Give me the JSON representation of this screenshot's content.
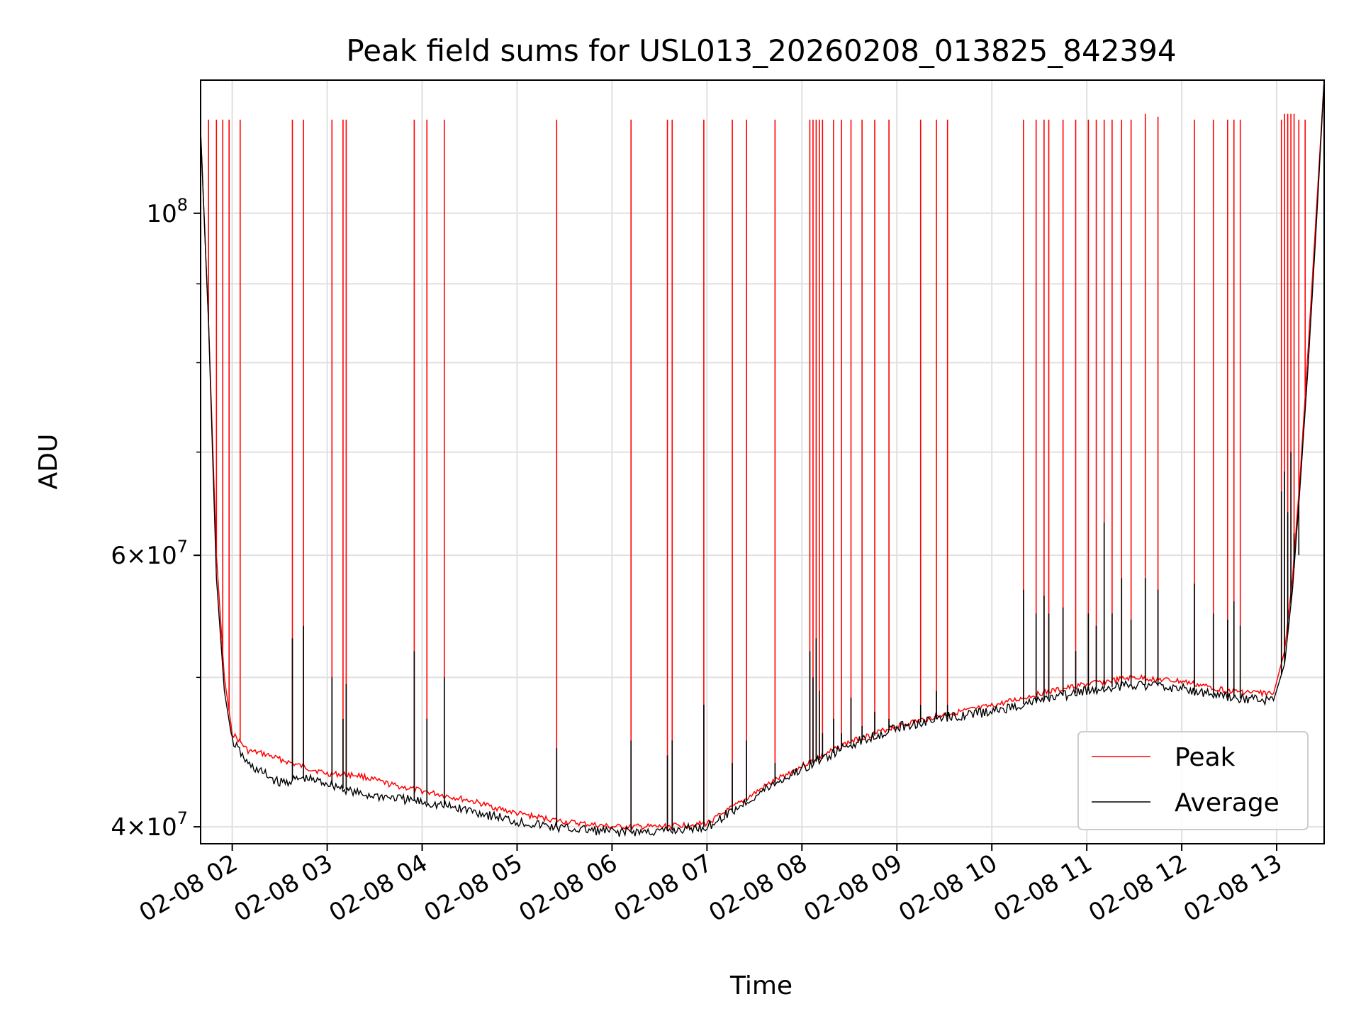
{
  "title": "Peak field sums for USL013_20260208_013825_842394",
  "colors": {
    "background": "#ffffff",
    "grid": "#e0e0e0",
    "axes": "#000000",
    "peak": "#ff0000",
    "average": "#000000"
  },
  "chart_data": {
    "type": "line",
    "title": "Peak field sums for USL013_20260208_013825_842394",
    "xlabel": "Time",
    "ylabel": "ADU",
    "y_scale": "log",
    "grid": true,
    "legend_position": "lower-right",
    "xlim": [
      "02-08 01:40",
      "02-08 13:30"
    ],
    "ylim": [
      39000000,
      122000000
    ],
    "x_ticks": [
      "02-08 02",
      "02-08 03",
      "02-08 04",
      "02-08 05",
      "02-08 06",
      "02-08 07",
      "02-08 08",
      "02-08 09",
      "02-08 10",
      "02-08 11",
      "02-08 12",
      "02-08 13"
    ],
    "y_ticks": [
      {
        "value": 100000000,
        "label": "10^8"
      },
      {
        "value": 60000000,
        "label": "6×10^7"
      },
      {
        "value": 40000000,
        "label": "4×10^7"
      }
    ],
    "series": [
      {
        "name": "Peak",
        "color": "#ff0000",
        "baseline": [
          [
            "02-08 01:40",
            113000000
          ],
          [
            "02-08 01:45",
            85000000
          ],
          [
            "02-08 01:50",
            60000000
          ],
          [
            "02-08 01:55",
            50000000
          ],
          [
            "02-08 02:00",
            46000000
          ],
          [
            "02-08 02:10",
            44800000
          ],
          [
            "02-08 02:20",
            44600000
          ],
          [
            "02-08 02:40",
            43900000
          ],
          [
            "02-08 03:00",
            43300000
          ],
          [
            "02-08 03:20",
            43200000
          ],
          [
            "02-08 03:40",
            42600000
          ],
          [
            "02-08 04:00",
            42200000
          ],
          [
            "02-08 04:30",
            41600000
          ],
          [
            "02-08 05:00",
            40800000
          ],
          [
            "02-08 05:30",
            40300000
          ],
          [
            "02-08 06:00",
            40000000
          ],
          [
            "02-08 06:30",
            40000000
          ],
          [
            "02-08 07:00",
            40200000
          ],
          [
            "02-08 07:20",
            41400000
          ],
          [
            "02-08 07:40",
            42700000
          ],
          [
            "02-08 08:00",
            43800000
          ],
          [
            "02-08 08:30",
            45400000
          ],
          [
            "02-08 09:00",
            46500000
          ],
          [
            "02-08 09:30",
            47300000
          ],
          [
            "02-08 10:00",
            47900000
          ],
          [
            "02-08 10:30",
            48800000
          ],
          [
            "02-08 11:00",
            49500000
          ],
          [
            "02-08 11:30",
            50000000
          ],
          [
            "02-08 12:00",
            49700000
          ],
          [
            "02-08 12:30",
            49000000
          ],
          [
            "02-08 12:58",
            48800000
          ],
          [
            "02-08 13:05",
            52000000
          ],
          [
            "02-08 13:10",
            58000000
          ],
          [
            "02-08 13:15",
            68000000
          ],
          [
            "02-08 13:20",
            82000000
          ],
          [
            "02-08 13:25",
            100000000
          ],
          [
            "02-08 13:30",
            122000000
          ]
        ],
        "spikes": [
          [
            "02-08 01:45",
            115000000
          ],
          [
            "02-08 01:50",
            115000000
          ],
          [
            "02-08 01:54",
            115000000
          ],
          [
            "02-08 01:58",
            115000000
          ],
          [
            "02-08 02:05",
            115000000
          ],
          [
            "02-08 02:38",
            115000000
          ],
          [
            "02-08 02:45",
            115000000
          ],
          [
            "02-08 03:03",
            115000000
          ],
          [
            "02-08 03:10",
            115000000
          ],
          [
            "02-08 03:12",
            115000000
          ],
          [
            "02-08 03:55",
            115000000
          ],
          [
            "02-08 04:03",
            115000000
          ],
          [
            "02-08 04:14",
            115000000
          ],
          [
            "02-08 05:25",
            115000000
          ],
          [
            "02-08 06:12",
            115000000
          ],
          [
            "02-08 06:35",
            115000000
          ],
          [
            "02-08 06:38",
            115000000
          ],
          [
            "02-08 06:58",
            115000000
          ],
          [
            "02-08 07:16",
            115000000
          ],
          [
            "02-08 07:25",
            115000000
          ],
          [
            "02-08 07:43",
            115000000
          ],
          [
            "02-08 08:05",
            115000000
          ],
          [
            "02-08 08:07",
            115000000
          ],
          [
            "02-08 08:09",
            115000000
          ],
          [
            "02-08 08:11",
            115000000
          ],
          [
            "02-08 08:13",
            115000000
          ],
          [
            "02-08 08:20",
            115000000
          ],
          [
            "02-08 08:25",
            115000000
          ],
          [
            "02-08 08:31",
            115000000
          ],
          [
            "02-08 08:38",
            115000000
          ],
          [
            "02-08 08:46",
            115000000
          ],
          [
            "02-08 08:55",
            115000000
          ],
          [
            "02-08 09:15",
            115000000
          ],
          [
            "02-08 09:25",
            115000000
          ],
          [
            "02-08 09:32",
            115000000
          ],
          [
            "02-08 10:20",
            115000000
          ],
          [
            "02-08 10:28",
            115000000
          ],
          [
            "02-08 10:33",
            115000000
          ],
          [
            "02-08 10:36",
            115000000
          ],
          [
            "02-08 10:45",
            115000000
          ],
          [
            "02-08 10:53",
            115000000
          ],
          [
            "02-08 11:01",
            115000000
          ],
          [
            "02-08 11:06",
            115000000
          ],
          [
            "02-08 11:11",
            115000000
          ],
          [
            "02-08 11:16",
            115000000
          ],
          [
            "02-08 11:22",
            115000000
          ],
          [
            "02-08 11:28",
            115000000
          ],
          [
            "02-08 11:37",
            116000000
          ],
          [
            "02-08 11:45",
            115500000
          ],
          [
            "02-08 12:08",
            115000000
          ],
          [
            "02-08 12:20",
            115000000
          ],
          [
            "02-08 12:29",
            115000000
          ],
          [
            "02-08 12:33",
            115000000
          ],
          [
            "02-08 12:37",
            115000000
          ],
          [
            "02-08 13:03",
            115000000
          ],
          [
            "02-08 13:05",
            116000000
          ],
          [
            "02-08 13:07",
            116000000
          ],
          [
            "02-08 13:09",
            116000000
          ],
          [
            "02-08 13:11",
            116000000
          ],
          [
            "02-08 13:14",
            115000000
          ],
          [
            "02-08 13:18",
            115000000
          ]
        ]
      },
      {
        "name": "Average",
        "color": "#000000",
        "baseline": [
          [
            "02-08 01:40",
            113000000
          ],
          [
            "02-08 01:45",
            85000000
          ],
          [
            "02-08 01:50",
            58000000
          ],
          [
            "02-08 01:55",
            49000000
          ],
          [
            "02-08 02:00",
            45500000
          ],
          [
            "02-08 02:10",
            43900000
          ],
          [
            "02-08 02:20",
            43300000
          ],
          [
            "02-08 02:30",
            42700000
          ],
          [
            "02-08 02:45",
            43000000
          ],
          [
            "02-08 03:00",
            42700000
          ],
          [
            "02-08 03:20",
            42000000
          ],
          [
            "02-08 03:40",
            41800000
          ],
          [
            "02-08 04:00",
            41500000
          ],
          [
            "02-08 04:30",
            41000000
          ],
          [
            "02-08 05:00",
            40300000
          ],
          [
            "02-08 05:30",
            39900000
          ],
          [
            "02-08 06:00",
            39700000
          ],
          [
            "02-08 06:30",
            39700000
          ],
          [
            "02-08 07:00",
            40000000
          ],
          [
            "02-08 07:20",
            41200000
          ],
          [
            "02-08 07:40",
            42500000
          ],
          [
            "02-08 08:00",
            43600000
          ],
          [
            "02-08 08:30",
            45200000
          ],
          [
            "02-08 09:00",
            46400000
          ],
          [
            "02-08 09:30",
            47100000
          ],
          [
            "02-08 10:00",
            47500000
          ],
          [
            "02-08 10:30",
            48300000
          ],
          [
            "02-08 11:00",
            49000000
          ],
          [
            "02-08 11:30",
            49500000
          ],
          [
            "02-08 12:00",
            49200000
          ],
          [
            "02-08 12:30",
            48500000
          ],
          [
            "02-08 12:58",
            48300000
          ],
          [
            "02-08 13:05",
            51000000
          ],
          [
            "02-08 13:10",
            57000000
          ],
          [
            "02-08 13:15",
            67000000
          ],
          [
            "02-08 13:20",
            80000000
          ],
          [
            "02-08 13:25",
            98000000
          ],
          [
            "02-08 13:30",
            122000000
          ]
        ],
        "spikes": [
          [
            "02-08 02:38",
            53000000
          ],
          [
            "02-08 02:45",
            54000000
          ],
          [
            "02-08 03:03",
            50000000
          ],
          [
            "02-08 03:10",
            47000000
          ],
          [
            "02-08 03:12",
            49500000
          ],
          [
            "02-08 03:55",
            52000000
          ],
          [
            "02-08 04:03",
            47000000
          ],
          [
            "02-08 04:14",
            50000000
          ],
          [
            "02-08 05:25",
            45000000
          ],
          [
            "02-08 06:12",
            45500000
          ],
          [
            "02-08 06:35",
            44500000
          ],
          [
            "02-08 06:38",
            45500000
          ],
          [
            "02-08 06:58",
            48000000
          ],
          [
            "02-08 07:16",
            44000000
          ],
          [
            "02-08 07:25",
            45500000
          ],
          [
            "02-08 07:43",
            44000000
          ],
          [
            "02-08 08:05",
            52000000
          ],
          [
            "02-08 08:07",
            50000000
          ],
          [
            "02-08 08:09",
            53000000
          ],
          [
            "02-08 08:11",
            49000000
          ],
          [
            "02-08 08:13",
            46000000
          ],
          [
            "02-08 08:20",
            47000000
          ],
          [
            "02-08 08:25",
            46000000
          ],
          [
            "02-08 08:31",
            48500000
          ],
          [
            "02-08 08:38",
            46500000
          ],
          [
            "02-08 08:46",
            47500000
          ],
          [
            "02-08 08:55",
            47000000
          ],
          [
            "02-08 09:15",
            48000000
          ],
          [
            "02-08 09:25",
            49000000
          ],
          [
            "02-08 09:32",
            48000000
          ],
          [
            "02-08 10:20",
            57000000
          ],
          [
            "02-08 10:28",
            55000000
          ],
          [
            "02-08 10:33",
            56500000
          ],
          [
            "02-08 10:36",
            55000000
          ],
          [
            "02-08 10:45",
            55500000
          ],
          [
            "02-08 10:53",
            52000000
          ],
          [
            "02-08 11:01",
            55000000
          ],
          [
            "02-08 11:06",
            54000000
          ],
          [
            "02-08 11:11",
            63000000
          ],
          [
            "02-08 11:16",
            55000000
          ],
          [
            "02-08 11:22",
            58000000
          ],
          [
            "02-08 11:28",
            54500000
          ],
          [
            "02-08 11:37",
            58000000
          ],
          [
            "02-08 11:45",
            57000000
          ],
          [
            "02-08 12:08",
            57500000
          ],
          [
            "02-08 12:20",
            55000000
          ],
          [
            "02-08 12:29",
            54500000
          ],
          [
            "02-08 12:33",
            56000000
          ],
          [
            "02-08 12:37",
            54000000
          ],
          [
            "02-08 13:03",
            66000000
          ],
          [
            "02-08 13:05",
            68000000
          ],
          [
            "02-08 13:07",
            64000000
          ],
          [
            "02-08 13:09",
            70000000
          ],
          [
            "02-08 13:11",
            62000000
          ],
          [
            "02-08 13:14",
            60000000
          ]
        ]
      }
    ]
  }
}
